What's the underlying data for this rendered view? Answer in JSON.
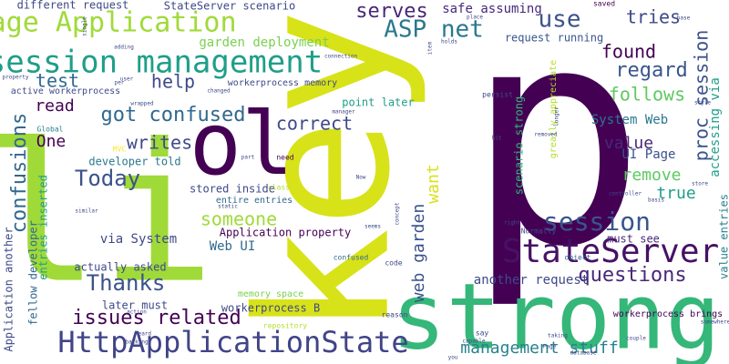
{
  "palette": [
    "#440154",
    "#482878",
    "#3e4989",
    "#31688e",
    "#26828e",
    "#1f9e89",
    "#35b779",
    "#6ece58",
    "#b5de2b",
    "#fde725"
  ],
  "words": [
    {
      "text": "p",
      "color": "#440154"
    },
    {
      "text": "key",
      "color": "#d8e219"
    },
    {
      "text": "li",
      "color": "#a0da39"
    },
    {
      "text": "strong",
      "color": "#35b779"
    },
    {
      "text": "ol",
      "color": "#440154"
    },
    {
      "text": "StateServer",
      "color": "#471164"
    },
    {
      "text": "session management",
      "color": "#1f9e89"
    },
    {
      "text": "HttpApplicationState",
      "color": "#414487"
    },
    {
      "text": "Page Application",
      "color": "#a0da39"
    },
    {
      "text": "session",
      "color": "#39558c"
    },
    {
      "text": "ASP net",
      "color": "#2a788e"
    },
    {
      "text": "use",
      "color": "#3b528b"
    },
    {
      "text": "proc session",
      "color": "#3b528b"
    },
    {
      "text": "confusions",
      "color": "#31688e"
    },
    {
      "text": "got confused",
      "color": "#31688e"
    },
    {
      "text": "issues related",
      "color": "#440154"
    },
    {
      "text": "found",
      "color": "#440154"
    },
    {
      "text": "regard",
      "color": "#39558c"
    },
    {
      "text": "follows",
      "color": "#5ec962"
    },
    {
      "text": "tries",
      "color": "#3e4989"
    },
    {
      "text": "serves",
      "color": "#482878"
    },
    {
      "text": "test",
      "color": "#31688e"
    },
    {
      "text": "help",
      "color": "#3e4989"
    },
    {
      "text": "read",
      "color": "#440154"
    },
    {
      "text": "correct",
      "color": "#3e4989"
    },
    {
      "text": "writes",
      "color": "#3e4989"
    },
    {
      "text": "One",
      "color": "#440154"
    },
    {
      "text": "Today",
      "color": "#3b528b"
    },
    {
      "text": "someone",
      "color": "#a0da39"
    },
    {
      "text": "want",
      "color": "#d8e219"
    },
    {
      "text": "web garden",
      "color": "#3b528b"
    },
    {
      "text": "Thanks",
      "color": "#3b528b"
    },
    {
      "text": "remove",
      "color": "#5ec962"
    },
    {
      "text": "value",
      "color": "#482878"
    },
    {
      "text": "true",
      "color": "#1f9e89"
    },
    {
      "text": "questions",
      "color": "#482878"
    },
    {
      "text": "management stuff",
      "color": "#26828e"
    },
    {
      "text": "via System",
      "color": "#3e4989"
    },
    {
      "text": "Web UI",
      "color": "#31688e"
    },
    {
      "text": "UI Page",
      "color": "#3b528b"
    },
    {
      "text": "System Web",
      "color": "#2a788e"
    },
    {
      "text": "accessing via",
      "color": "#1f9e89"
    },
    {
      "text": "garden deployment",
      "color": "#7ad151"
    },
    {
      "text": "scenario strong",
      "color": "#35b779"
    },
    {
      "text": "safe assuming",
      "color": "#482878"
    },
    {
      "text": "StateServer scenario",
      "color": "#3e4989"
    },
    {
      "text": "different request",
      "color": "#3e4989"
    },
    {
      "text": "request running",
      "color": "#39558c"
    },
    {
      "text": "another request",
      "color": "#3e4989"
    },
    {
      "text": "workerprocess B",
      "color": "#3e4989"
    },
    {
      "text": "Application property",
      "color": "#440154"
    },
    {
      "text": "stored inside",
      "color": "#3e4989"
    },
    {
      "text": "entire entries",
      "color": "#31688e"
    },
    {
      "text": "developer told",
      "color": "#2a788e"
    },
    {
      "text": "fellow developer",
      "color": "#31688e"
    },
    {
      "text": "entries inserted",
      "color": "#1f9e89"
    },
    {
      "text": "Application another",
      "color": "#3e4989"
    },
    {
      "text": "actually asked",
      "color": "#3e4989"
    },
    {
      "text": "later must",
      "color": "#3e4989"
    },
    {
      "text": "point later",
      "color": "#1f9e89"
    },
    {
      "text": "must see",
      "color": "#482878"
    },
    {
      "text": "value entries",
      "color": "#26828e"
    },
    {
      "text": "memory space",
      "color": "#7ad151"
    },
    {
      "text": "workerprocess brings",
      "color": "#440154"
    },
    {
      "text": "greatly appreciate",
      "color": "#b5de2b"
    },
    {
      "text": "active workerprocess",
      "color": "#3e4989"
    },
    {
      "text": "workerprocess memory",
      "color": "#3e4989"
    },
    {
      "text": "confused",
      "color": "#31688e"
    },
    {
      "text": "repository",
      "color": "#b5de2b"
    },
    {
      "text": "persist",
      "color": "#3e4989"
    },
    {
      "text": "Normally",
      "color": "#3e4989"
    },
    {
      "text": "Global",
      "color": "#26828e"
    },
    {
      "text": "MVC",
      "color": "#fde725"
    },
    {
      "text": "code",
      "color": "#3e4989"
    },
    {
      "text": "need",
      "color": "#440154"
    },
    {
      "text": "saved",
      "color": "#440154"
    },
    {
      "text": "holds",
      "color": "#3e4989"
    },
    {
      "text": "connection",
      "color": "#3e4989"
    },
    {
      "text": "class",
      "color": "#b5de2b"
    },
    {
      "text": "object",
      "color": "#31688e"
    },
    {
      "text": "reason",
      "color": "#3e4989"
    },
    {
      "text": "say",
      "color": "#3e4989"
    },
    {
      "text": "Page",
      "color": "#3e4989"
    },
    {
      "text": "controller",
      "color": "#3e4989"
    },
    {
      "text": "style",
      "color": "#3e4989"
    },
    {
      "text": "store",
      "color": "#3e4989"
    },
    {
      "text": "place",
      "color": "#3e4989"
    },
    {
      "text": "base",
      "color": "#3e4989"
    },
    {
      "text": "adding",
      "color": "#3e4989"
    },
    {
      "text": "user",
      "color": "#3e4989"
    },
    {
      "text": "property",
      "color": "#3e4989"
    },
    {
      "text": "changed",
      "color": "#3e4989"
    },
    {
      "text": "wrapped",
      "color": "#3e4989"
    },
    {
      "text": "manager",
      "color": "#3e4989"
    },
    {
      "text": "similar",
      "color": "#3e4989"
    },
    {
      "text": "static",
      "color": "#3e4989"
    },
    {
      "text": "Now",
      "color": "#3e4989"
    },
    {
      "text": "concept",
      "color": "#3e4989"
    },
    {
      "text": "seems",
      "color": "#3e4989"
    },
    {
      "text": "heard",
      "color": "#3e4989"
    },
    {
      "text": "backing",
      "color": "#3e4989"
    },
    {
      "text": "action",
      "color": "#3e4989"
    },
    {
      "text": "basis",
      "color": "#3e4989"
    },
    {
      "text": "right",
      "color": "#3e4989"
    },
    {
      "text": "database",
      "color": "#3e4989"
    },
    {
      "text": "couple",
      "color": "#3e4989"
    },
    {
      "text": "somewhere",
      "color": "#3e4989"
    },
    {
      "text": "taking",
      "color": "#3e4989"
    },
    {
      "text": "capable",
      "color": "#3e4989"
    },
    {
      "text": "you",
      "color": "#3e4989"
    },
    {
      "text": "hit",
      "color": "#3e4989"
    },
    {
      "text": "removed",
      "color": "#3e4989"
    },
    {
      "text": "longer",
      "color": "#3e4989"
    },
    {
      "text": "item",
      "color": "#3e4989"
    },
    {
      "text": "single",
      "color": "#3e4989"
    },
    {
      "text": "part",
      "color": "#3e4989"
    },
    {
      "text": "per",
      "color": "#3e4989"
    }
  ]
}
